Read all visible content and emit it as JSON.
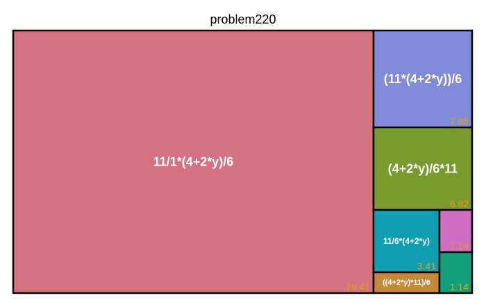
{
  "chart_data": {
    "type": "treemap",
    "title": "problem220",
    "value_color": "#e89a12",
    "label_color": "#ffffff",
    "border_color": "#000000",
    "items": [
      {
        "label": "11/1*(4+2*y)/6",
        "value_text": "78.41",
        "value": 78.41,
        "color": "#d4737f"
      },
      {
        "label": "(11*(4+2*y))/6",
        "value_text": "7.95",
        "value": 7.95,
        "color": "#7f8ad9"
      },
      {
        "label": "(4+2*y)/6*11",
        "value_text": "6.82",
        "value": 6.82,
        "color": "#7a9a2e"
      },
      {
        "label": "11/6*(4+2*y)",
        "value_text": "3.41",
        "value": 3.41,
        "color": "#0f9fb1"
      },
      {
        "label": "",
        "value_text": "1.14",
        "value": 1.14,
        "color": "#cf6cc3"
      },
      {
        "label": "((4+2*y)*11)/6",
        "value_text": "",
        "value": 1.14,
        "color": "#c48a39"
      },
      {
        "label": "",
        "value_text": "1.14",
        "value": 1.14,
        "color": "#12a07a"
      }
    ]
  }
}
